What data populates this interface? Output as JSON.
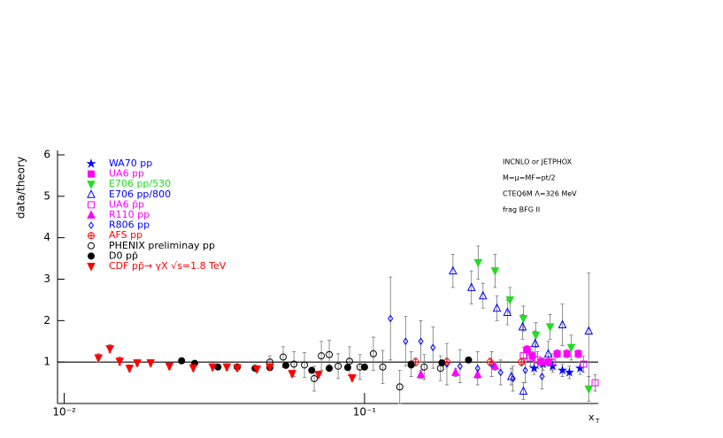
{
  "chart_data": {
    "type": "scatter",
    "ylabel": "data/theory",
    "xlabel": "x",
    "xlabel_sub": "T",
    "log_x": true,
    "xlim": [
      0.0095,
      0.6
    ],
    "ylim": [
      0,
      6
    ],
    "xticks": [
      {
        "value": 0.01,
        "label": "10⁻²"
      },
      {
        "value": 0.1,
        "label": "10⁻¹"
      }
    ],
    "yticks": [
      1,
      2,
      3,
      4,
      5,
      6
    ],
    "reference_line": 1,
    "annotations": [
      "INCNLO or JETPHOX",
      "M=μ=MF=pt/2",
      "CTEQ6M Λ=326 MeV",
      "frag  BFG II"
    ],
    "series": [
      {
        "name": "WA70 pp",
        "color": "#0000ff",
        "marker": "star",
        "x": [
          0.367,
          0.393,
          0.423,
          0.456,
          0.481,
          0.522
        ],
        "values": [
          0.85,
          0.95,
          0.9,
          0.8,
          0.75,
          0.85
        ],
        "errors": [
          0.15,
          0.15,
          0.15,
          0.15,
          0.15,
          0.15
        ]
      },
      {
        "name": "UA6 pp",
        "color": "#ff00ff",
        "marker": "square",
        "x": [
          0.348,
          0.362,
          0.387,
          0.409,
          0.438,
          0.472,
          0.515
        ],
        "values": [
          1.3,
          1.15,
          1.0,
          1.0,
          1.2,
          1.2,
          1.2
        ],
        "errors": [
          0.1,
          0.1,
          0.1,
          0.1,
          0.1,
          0.1,
          0.1
        ]
      },
      {
        "name": "E706 pp/530",
        "color": "#22dd22",
        "marker": "triangle-down",
        "x": [
          0.239,
          0.272,
          0.305,
          0.338,
          0.372,
          0.415,
          0.488,
          0.558
        ],
        "values": [
          3.4,
          3.2,
          2.5,
          2.05,
          1.65,
          1.85,
          1.35,
          0.35
        ],
        "errors": [
          0.4,
          0.4,
          0.3,
          0.3,
          0.3,
          0.3,
          0.3,
          0.3
        ]
      },
      {
        "name": "E706 pp/800",
        "color": "#0000ff",
        "marker": "triangle-up-open",
        "x": [
          0.197,
          0.227,
          0.248,
          0.276,
          0.299,
          0.308,
          0.336,
          0.338,
          0.37,
          0.409,
          0.456,
          0.558
        ],
        "values": [
          3.2,
          2.8,
          2.6,
          2.3,
          2.2,
          0.65,
          1.85,
          0.3,
          1.45,
          1.2,
          1.9,
          1.75
        ],
        "errors": [
          0.4,
          0.4,
          0.3,
          0.3,
          0.3,
          0.2,
          0.3,
          0.2,
          0.3,
          0.3,
          0.5,
          1.4
        ]
      },
      {
        "name": "UA6 p̄p",
        "color": "#ff00ff",
        "marker": "square-open",
        "x": [
          0.338,
          0.357,
          0.377,
          0.421,
          0.536,
          0.586
        ],
        "values": [
          1.15,
          1.1,
          1.05,
          1.0,
          0.95,
          0.5
        ],
        "errors": [
          0.2,
          0.2,
          0.2,
          0.2,
          0.2,
          0.2
        ]
      },
      {
        "name": "R110 pp",
        "color": "#ff00ff",
        "marker": "triangle-up",
        "x": [
          0.154,
          0.201,
          0.238,
          0.272
        ],
        "values": [
          0.7,
          0.75,
          0.7,
          0.9
        ],
        "errors": [
          0.1,
          0.1,
          0.1,
          0.1
        ]
      },
      {
        "name": "R806 pp",
        "color": "#0000ff",
        "marker": "diamond-open",
        "x": [
          0.122,
          0.137,
          0.154,
          0.169,
          0.188,
          0.208,
          0.238,
          0.265,
          0.284,
          0.312,
          0.343,
          0.39
        ],
        "values": [
          2.05,
          1.5,
          1.5,
          1.35,
          0.95,
          0.9,
          0.85,
          0.95,
          0.75,
          0.6,
          0.8,
          0.65
        ],
        "errors": [
          1.0,
          0.6,
          0.5,
          0.5,
          0.5,
          0.4,
          0.4,
          0.3,
          0.3,
          0.3,
          0.3,
          0.3
        ]
      },
      {
        "name": "AFS pp",
        "color": "#ff0000",
        "marker": "circle-cross",
        "x": [
          0.148,
          0.188,
          0.262,
          0.333
        ],
        "values": [
          1.0,
          1.0,
          1.0,
          1.0
        ],
        "errors": [
          0.1,
          0.1,
          0.1,
          0.1
        ]
      },
      {
        "name": "PHENIX preliminay pp",
        "color": "#000000",
        "marker": "circle-open",
        "x": [
          0.0484,
          0.0536,
          0.0582,
          0.0631,
          0.068,
          0.0718,
          0.0763,
          0.0817,
          0.0891,
          0.0966,
          0.107,
          0.115,
          0.131,
          0.143,
          0.158,
          0.179
        ],
        "values": [
          1.0,
          1.12,
          0.95,
          0.93,
          0.6,
          1.15,
          1.18,
          0.9,
          1.02,
          0.88,
          1.2,
          0.88,
          0.4,
          0.95,
          0.88,
          0.85
        ],
        "errors": [
          0.15,
          0.25,
          0.3,
          0.3,
          0.3,
          0.35,
          0.35,
          0.3,
          0.35,
          0.3,
          0.4,
          0.4,
          0.4,
          0.3,
          0.3,
          0.3
        ]
      },
      {
        "name": "D0 pp̄",
        "color": "#000000",
        "marker": "circle",
        "x": [
          0.0246,
          0.0272,
          0.0325,
          0.0377,
          0.0432,
          0.0484,
          0.0547,
          0.0667,
          0.0763,
          0.0879,
          0.1,
          0.143,
          0.181,
          0.222
        ],
        "values": [
          1.03,
          0.97,
          0.88,
          0.88,
          0.85,
          0.87,
          0.92,
          0.8,
          0.85,
          0.87,
          0.88,
          0.93,
          0.98,
          1.05
        ],
        "errors": [
          0.05,
          0.05,
          0.05,
          0.05,
          0.05,
          0.05,
          0.05,
          0.05,
          0.05,
          0.05,
          0.05,
          0.05,
          0.05,
          0.05
        ]
      },
      {
        "name": "CDF pp̄→ γX √s=1.8 TeV",
        "color": "#ff0000",
        "marker": "triangle-down",
        "x": [
          0.013,
          0.0142,
          0.0153,
          0.0165,
          0.0175,
          0.0194,
          0.0224,
          0.0269,
          0.0312,
          0.0348,
          0.0377,
          0.0438,
          0.0484,
          0.0574,
          0.0703,
          0.091
        ],
        "values": [
          1.1,
          1.32,
          1.02,
          0.85,
          0.98,
          0.98,
          0.9,
          0.86,
          0.88,
          0.88,
          0.86,
          0.83,
          0.88,
          0.72,
          0.7,
          0.62
        ],
        "errors": [
          0.1,
          0.1,
          0.1,
          0.08,
          0.08,
          0.08,
          0.08,
          0.08,
          0.08,
          0.08,
          0.08,
          0.08,
          0.08,
          0.08,
          0.08,
          0.08
        ]
      }
    ]
  }
}
